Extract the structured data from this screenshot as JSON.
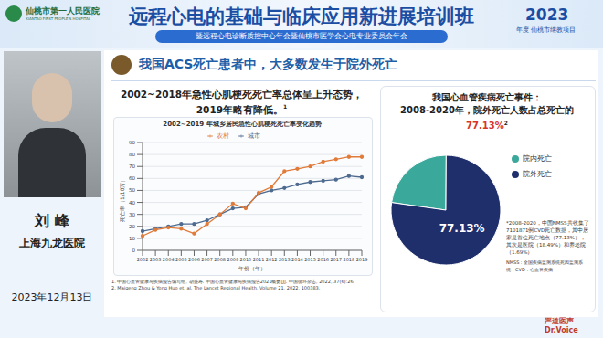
{
  "header": {
    "title": "远程心电的基础与临床应用新进展培训班",
    "subtitle": "暨远程心电诊断质控中心年会暨仙桃市医学会心电专业委员会年会",
    "hospital": "仙桃市第一人民医院",
    "hospital_en": "XIANTAO FIRST PEOPLE'S HOSPITAL",
    "year": "2023",
    "project": "年度 仙桃市继教项目"
  },
  "speaker": {
    "name": "刘 峰",
    "affiliation": "上海九龙医院",
    "date": "2023年12月13日"
  },
  "slide": {
    "title": "我国ACS死亡患者中，大多数发生于院外死亡",
    "left_heading": "2002~2018年急性心肌梗死死亡率总体呈上升态势，2019年略有降低。",
    "left_ref": "1",
    "right_heading_1": "我国心血管疾病死亡事件：",
    "right_heading_2": "2008-2020年，院外死亡人数占总死亡的",
    "right_highlight": "77.13%",
    "right_ref": "2",
    "note": "*2008-2020，中国NMSS共收集了7101871例CVD死亡数据，其中居家是首位死亡地点（77.13%），其次是医院（18.49%）和养老院（1.69%）",
    "note_abbrev": "NMSS：全国疾病监测系统死因监测系统；CVD：心血管疾病",
    "references": [
      "1. 中国心血管健康与疾病报告编写组, 胡盛寿. 中国心血管健康与疾病报告2021概要[J]. 中国循环杂志, 2022, 37(6):26.",
      "2. Maigeng Zhou & Yong Huo et. al. The Lancet Regional Health, Volume 21, 2022, 100383."
    ]
  },
  "watermark": "严道医声 Dr.Voice",
  "chart_data": [
    {
      "type": "line",
      "title": "2002~2019 年城乡居民急性心肌梗死死亡率变化趋势",
      "x_label": "年份（年）",
      "y_label": "死亡率（1/10万）",
      "categories": [
        "2002",
        "2003",
        "2004",
        "2005",
        "2006",
        "2007",
        "2008",
        "2009",
        "2010",
        "2011",
        "2012",
        "2013",
        "2014",
        "2015",
        "2016",
        "2017",
        "2018",
        "2019"
      ],
      "series": [
        {
          "name": "城市",
          "color": "#4d6a8f",
          "values": [
            16,
            18,
            20,
            22,
            22,
            25,
            30,
            35,
            36,
            47,
            50,
            52,
            55,
            57,
            58,
            59,
            62,
            61
          ]
        },
        {
          "name": "农村",
          "color": "#e07b39",
          "values": [
            12,
            17,
            19,
            18,
            14,
            22,
            30,
            39,
            35,
            48,
            53,
            66,
            68,
            70,
            74,
            76,
            78,
            78
          ]
        }
      ],
      "ylim": [
        0,
        90
      ],
      "yticks": [
        0,
        10,
        20,
        30,
        40,
        50,
        60,
        70,
        80,
        90
      ],
      "grid": true,
      "legend": "top",
      "marker": "circle"
    },
    {
      "type": "pie",
      "categories": [
        "院内死亡",
        "院外死亡"
      ],
      "values": [
        22.87,
        77.13
      ],
      "colors": [
        "#3aa89a",
        "#1f2f6b"
      ],
      "value_labels": [
        null,
        "77.13%"
      ],
      "legend": "right"
    }
  ]
}
